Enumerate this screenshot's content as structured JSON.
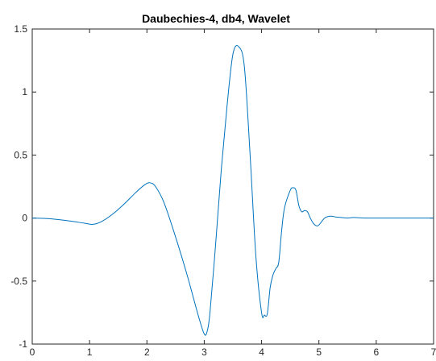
{
  "chart_data": {
    "type": "line",
    "title": "Daubechies-4, db4, Wavelet",
    "xlabel": "",
    "ylabel": "",
    "xlim": [
      0,
      7
    ],
    "ylim": [
      -1,
      1.5
    ],
    "x_ticks": [
      0,
      1,
      2,
      3,
      4,
      5,
      6,
      7
    ],
    "x_tick_labels": [
      "0",
      "1",
      "2",
      "3",
      "4",
      "5",
      "6",
      "7"
    ],
    "y_ticks": [
      -1,
      -0.5,
      0,
      0.5,
      1,
      1.5
    ],
    "y_tick_labels": [
      "-1",
      "-0.5",
      "0",
      "0.5",
      "1",
      "1.5"
    ],
    "grid": false,
    "series": [
      {
        "color": "#0072BD",
        "x": [
          0,
          0.3,
          0.6,
          0.9,
          1.05,
          1.2,
          1.4,
          1.6,
          1.8,
          1.95,
          2.05,
          2.15,
          2.3,
          2.5,
          2.7,
          2.9,
          3.0,
          3.05,
          3.1,
          3.2,
          3.3,
          3.4,
          3.5,
          3.6,
          3.7,
          3.8,
          3.9,
          4.0,
          4.05,
          4.1,
          4.15,
          4.2,
          4.25,
          4.3,
          4.35,
          4.4,
          4.5,
          4.55,
          4.6,
          4.65,
          4.7,
          4.75,
          4.8,
          4.85,
          4.9,
          4.95,
          5.0,
          5.1,
          5.2,
          5.3,
          5.4,
          5.5,
          5.6,
          5.7,
          5.8,
          6.0,
          6.5,
          7.0
        ],
        "y": [
          0,
          -0.005,
          -0.02,
          -0.04,
          -0.05,
          -0.03,
          0.03,
          0.11,
          0.2,
          0.26,
          0.28,
          0.25,
          0.12,
          -0.15,
          -0.45,
          -0.78,
          -0.92,
          -0.9,
          -0.75,
          -0.2,
          0.4,
          0.9,
          1.3,
          1.36,
          1.2,
          0.5,
          -0.3,
          -0.75,
          -0.77,
          -0.76,
          -0.55,
          -0.45,
          -0.4,
          -0.35,
          -0.1,
          0.08,
          0.22,
          0.24,
          0.22,
          0.1,
          0.05,
          0.06,
          0.05,
          0.0,
          -0.04,
          -0.06,
          -0.055,
          0.0,
          0.015,
          0.008,
          0.004,
          0.0,
          0.005,
          0.002,
          0.0,
          0.0,
          0.0,
          0.0
        ]
      }
    ]
  }
}
